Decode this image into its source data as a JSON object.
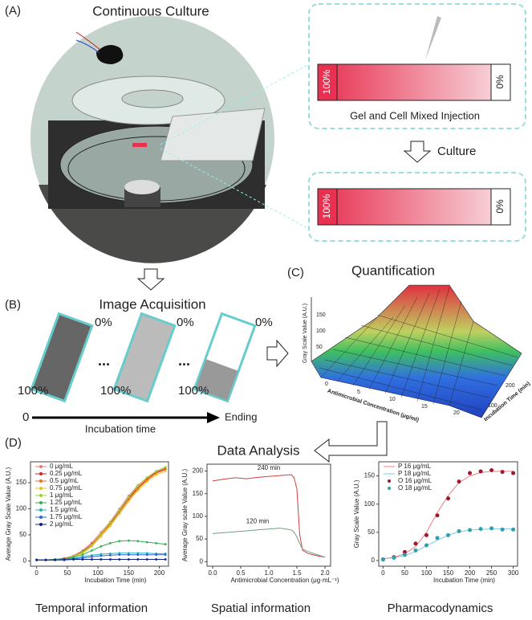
{
  "panel_a": {
    "label": "(A)",
    "title": "Continuous Culture",
    "step1": {
      "left": "100%",
      "right": "0%",
      "caption": "Gel and Cell Mixed Injection"
    },
    "arrow_label": "Culture",
    "step2": {
      "left": "100%",
      "right": "0%"
    }
  },
  "panel_b": {
    "label": "(B)",
    "title": "Image Acquisition",
    "strips": [
      {
        "top": "0%",
        "bottom": "100%"
      },
      {
        "top": "0%",
        "bottom": "100%"
      },
      {
        "top": "0%",
        "bottom": "100%"
      }
    ],
    "ellipsis": [
      "...",
      "..."
    ],
    "axis_start": "0",
    "axis_label": "Incubation time",
    "axis_end": "Ending"
  },
  "panel_c": {
    "label": "(C)",
    "title": "Quantification",
    "z_label": "Gray Scale Value (A.U.)",
    "x_label": "Antimicrobial Concentration (μg/ml)",
    "y_label": "Incubation Time (min)",
    "z_ticks": [
      "50",
      "100",
      "150"
    ],
    "x_ticks": [
      "0",
      "5",
      "10",
      "15",
      "20"
    ],
    "y_ticks": [
      "100",
      "200"
    ]
  },
  "panel_d": {
    "label": "(D)",
    "title": "Data Analysis"
  },
  "chart_data": [
    {
      "type": "line",
      "caption": "Temporal information",
      "xlabel": "Incubation Time (min)",
      "ylabel": "Average Gray Scale Value (A.U.)",
      "xlim": [
        -10,
        215
      ],
      "ylim": [
        -10,
        190
      ],
      "xticks": [
        0,
        50,
        100,
        150,
        200
      ],
      "yticks": [
        0,
        50,
        100,
        150
      ],
      "x": [
        0,
        15,
        30,
        45,
        60,
        75,
        90,
        105,
        120,
        135,
        150,
        165,
        180,
        195,
        210
      ],
      "series": [
        {
          "name": "0 μg/mL",
          "color": "#e08080",
          "marker": true,
          "values": [
            2,
            2,
            3,
            5,
            10,
            20,
            35,
            55,
            75,
            100,
            125,
            145,
            160,
            172,
            178
          ]
        },
        {
          "name": "0.25 μg/mL",
          "color": "#d02020",
          "marker": true,
          "values": [
            2,
            2,
            3,
            5,
            9,
            18,
            32,
            52,
            72,
            96,
            120,
            140,
            157,
            170,
            176
          ]
        },
        {
          "name": "0.5 μg/mL",
          "color": "#f07020",
          "marker": true,
          "values": [
            2,
            2,
            3,
            4,
            8,
            16,
            30,
            50,
            70,
            93,
            117,
            138,
            155,
            168,
            175
          ]
        },
        {
          "name": "0.75 μg/mL",
          "color": "#e8c020",
          "marker": true,
          "values": [
            2,
            2,
            3,
            4,
            8,
            15,
            28,
            47,
            67,
            90,
            114,
            135,
            152,
            165,
            172
          ]
        },
        {
          "name": "1 μg/mL",
          "color": "#a0d020",
          "marker": true,
          "values": [
            2,
            2,
            3,
            4,
            9,
            17,
            31,
            52,
            73,
            97,
            122,
            143,
            160,
            172,
            180
          ]
        },
        {
          "name": "1.25 μg/mL",
          "color": "#30b050",
          "marker": true,
          "values": [
            2,
            2,
            3,
            4,
            7,
            12,
            20,
            28,
            34,
            38,
            39,
            38,
            36,
            34,
            32
          ]
        },
        {
          "name": "1.5 μg/mL",
          "color": "#20b0c0",
          "marker": true,
          "values": [
            2,
            2,
            2,
            3,
            5,
            8,
            11,
            13,
            14,
            15,
            15,
            15,
            15,
            14,
            14
          ]
        },
        {
          "name": "1.75 μg/mL",
          "color": "#3060d0",
          "marker": true,
          "values": [
            2,
            2,
            2,
            3,
            4,
            6,
            8,
            10,
            11,
            12,
            12,
            12,
            12,
            12,
            12
          ]
        },
        {
          "name": "2 μg/mL",
          "color": "#102080",
          "marker": true,
          "values": [
            2,
            2,
            2,
            2,
            3,
            3,
            3,
            3,
            3,
            3,
            3,
            3,
            3,
            3,
            3
          ]
        }
      ]
    },
    {
      "type": "line",
      "caption": "Spatial information",
      "xlabel": "Antimicrobial Concentration (μg·mL⁻¹)",
      "ylabel": "Average Gray scale Value (A.U.)",
      "xlim": [
        -0.1,
        2.1
      ],
      "ylim": [
        -10,
        215
      ],
      "legend": "inline",
      "xticks": [
        {
          "value": 0,
          "label": "0.0"
        },
        {
          "value": 0.5,
          "label": "0.5"
        },
        {
          "value": 1,
          "label": "1.0"
        },
        {
          "value": 1.5,
          "label": "1.5"
        },
        {
          "value": 2,
          "label": "2.0"
        }
      ],
      "yticks": [
        0,
        50,
        100,
        150,
        200
      ],
      "x": [
        0,
        0.2,
        0.4,
        0.6,
        0.8,
        1.0,
        1.2,
        1.4,
        1.45,
        1.5,
        1.55,
        1.6,
        1.7,
        1.8,
        1.9,
        2.0
      ],
      "series": [
        {
          "name": "240 min",
          "color": "#d04040",
          "values": [
            178,
            182,
            185,
            183,
            186,
            188,
            190,
            192,
            185,
            160,
            60,
            25,
            18,
            15,
            12,
            10
          ]
        },
        {
          "name": "120 min",
          "color": "#70a080",
          "values": [
            62,
            64,
            66,
            68,
            70,
            72,
            74,
            70,
            65,
            55,
            40,
            28,
            22,
            18,
            14,
            10
          ]
        }
      ]
    },
    {
      "type": "line",
      "caption": "Pharmacodynamics",
      "xlabel": "Incubation Time (min)",
      "ylabel": "Gray Scale Value (A.U.)",
      "xlim": [
        -10,
        310
      ],
      "ylim": [
        -10,
        175
      ],
      "xticks": [
        0,
        50,
        100,
        150,
        200,
        250,
        300
      ],
      "yticks": [
        0,
        50,
        100,
        150
      ],
      "x": [
        0,
        25,
        50,
        75,
        100,
        125,
        150,
        175,
        200,
        225,
        250,
        275,
        300
      ],
      "series": [
        {
          "name": "P 16 μg/mL",
          "color": "#f08080",
          "values": [
            3,
            6,
            12,
            25,
            50,
            85,
            115,
            138,
            150,
            156,
            158,
            158,
            158
          ]
        },
        {
          "name": "P 18 μg/mL",
          "color": "#80c8e8",
          "values": [
            3,
            5,
            9,
            16,
            26,
            36,
            45,
            51,
            54,
            55,
            56,
            56,
            56
          ]
        },
        {
          "name": "O 16 μg/mL",
          "color": "#a01830",
          "marker": true,
          "line": false,
          "values": [
            2,
            6,
            15,
            30,
            45,
            80,
            110,
            140,
            155,
            158,
            160,
            157,
            155
          ]
        },
        {
          "name": "O 18 μg/mL",
          "color": "#30a0b0",
          "marker": true,
          "line": false,
          "values": [
            2,
            5,
            10,
            18,
            27,
            40,
            45,
            52,
            54,
            56,
            57,
            55,
            55
          ]
        }
      ]
    }
  ]
}
